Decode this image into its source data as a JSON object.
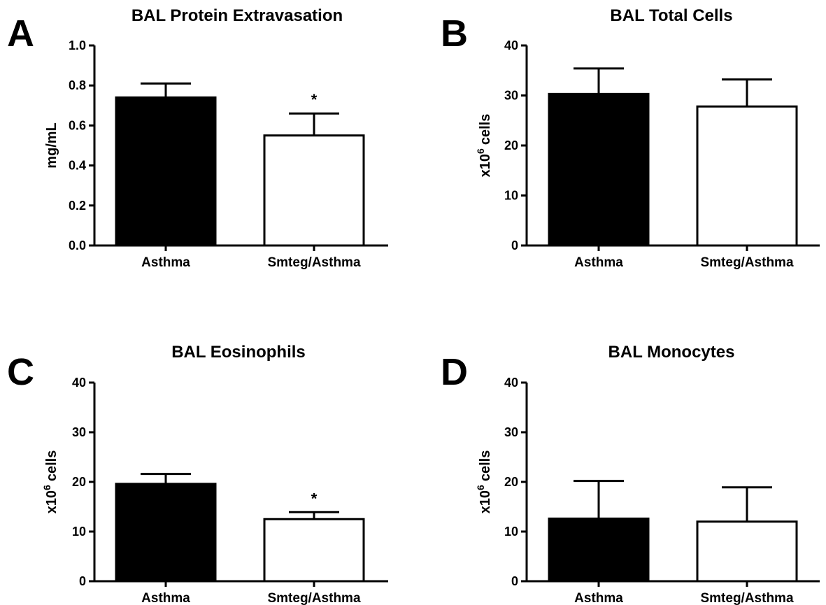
{
  "chart_data": [
    {
      "type": "bar",
      "panel": "A",
      "title": "BAL Protein Extravasation",
      "ylabel": "mg/mL",
      "ylim": [
        0,
        1.0
      ],
      "yticks": [
        0.0,
        0.2,
        0.4,
        0.6,
        0.8,
        1.0
      ],
      "ytick_labels": [
        "0.0",
        "0.2",
        "0.4",
        "0.6",
        "0.8",
        "1.0"
      ],
      "categories": [
        "Asthma",
        "Smteg/Asthma"
      ],
      "values": [
        0.74,
        0.55
      ],
      "errors": [
        0.07,
        0.11
      ],
      "fills": [
        "#000000",
        "#ffffff"
      ],
      "significance": [
        "",
        "*"
      ]
    },
    {
      "type": "bar",
      "panel": "B",
      "title": "BAL Total Cells",
      "ylabel": "cells",
      "ylabel_prefix": "x10",
      "ylabel_exp": "6",
      "ylim": [
        0,
        40
      ],
      "yticks": [
        0,
        10,
        20,
        30,
        40
      ],
      "ytick_labels": [
        "0",
        "10",
        "20",
        "30",
        "40"
      ],
      "categories": [
        "Asthma",
        "Smteg/Asthma"
      ],
      "values": [
        30.3,
        27.8
      ],
      "errors": [
        5.1,
        5.4
      ],
      "fills": [
        "#000000",
        "#ffffff"
      ],
      "significance": [
        "",
        ""
      ]
    },
    {
      "type": "bar",
      "panel": "C",
      "title": "BAL Eosinophils",
      "ylabel": "cells",
      "ylabel_prefix": "x10",
      "ylabel_exp": "6",
      "ylim": [
        0,
        40
      ],
      "yticks": [
        0,
        10,
        20,
        30,
        40
      ],
      "ytick_labels": [
        "0",
        "10",
        "20",
        "30",
        "40"
      ],
      "categories": [
        "Asthma",
        "Smteg/Asthma"
      ],
      "values": [
        19.6,
        12.5
      ],
      "errors": [
        2.0,
        1.4
      ],
      "fills": [
        "#000000",
        "#ffffff"
      ],
      "significance": [
        "",
        "*"
      ]
    },
    {
      "type": "bar",
      "panel": "D",
      "title": "BAL Monocytes",
      "ylabel": "cells",
      "ylabel_prefix": "x10",
      "ylabel_exp": "6",
      "ylim": [
        0,
        40
      ],
      "yticks": [
        0,
        10,
        20,
        30,
        40
      ],
      "ytick_labels": [
        "0",
        "10",
        "20",
        "30",
        "40"
      ],
      "categories": [
        "Asthma",
        "Smteg/Asthma"
      ],
      "values": [
        12.6,
        12.0
      ],
      "errors": [
        7.6,
        6.9
      ],
      "fills": [
        "#000000",
        "#ffffff"
      ],
      "significance": [
        "",
        ""
      ]
    }
  ]
}
